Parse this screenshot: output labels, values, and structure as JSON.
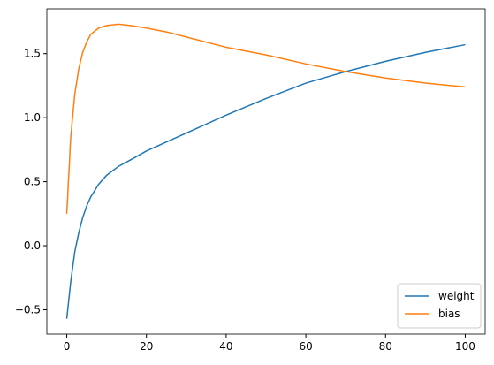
{
  "chart_data": {
    "type": "line",
    "x": [
      0,
      1,
      2,
      3,
      4,
      5,
      6,
      8,
      10,
      13,
      16,
      20,
      25,
      30,
      40,
      50,
      60,
      70,
      80,
      90,
      100
    ],
    "series": [
      {
        "name": "weight",
        "color": "#1f77b4",
        "values": [
          -0.57,
          -0.28,
          -0.05,
          0.1,
          0.22,
          0.31,
          0.38,
          0.48,
          0.55,
          0.62,
          0.67,
          0.74,
          0.81,
          0.88,
          1.02,
          1.15,
          1.27,
          1.36,
          1.44,
          1.51,
          1.57
        ]
      },
      {
        "name": "bias",
        "color": "#ff7f0e",
        "values": [
          0.25,
          0.85,
          1.18,
          1.38,
          1.51,
          1.59,
          1.65,
          1.7,
          1.72,
          1.73,
          1.72,
          1.7,
          1.67,
          1.63,
          1.55,
          1.49,
          1.42,
          1.36,
          1.31,
          1.27,
          1.24
        ]
      }
    ],
    "xlim": [
      -5,
      105
    ],
    "xticks": [
      0,
      20,
      40,
      60,
      80,
      100
    ],
    "ylim": [
      -0.69,
      1.85
    ],
    "yticks": [
      {
        "value": -0.5,
        "label": "−0.5"
      },
      {
        "value": 0,
        "label": "0.0"
      },
      0.5,
      {
        "value": 1,
        "label": "1.0"
      },
      1.5
    ],
    "grid": false,
    "legend": "lower right"
  }
}
